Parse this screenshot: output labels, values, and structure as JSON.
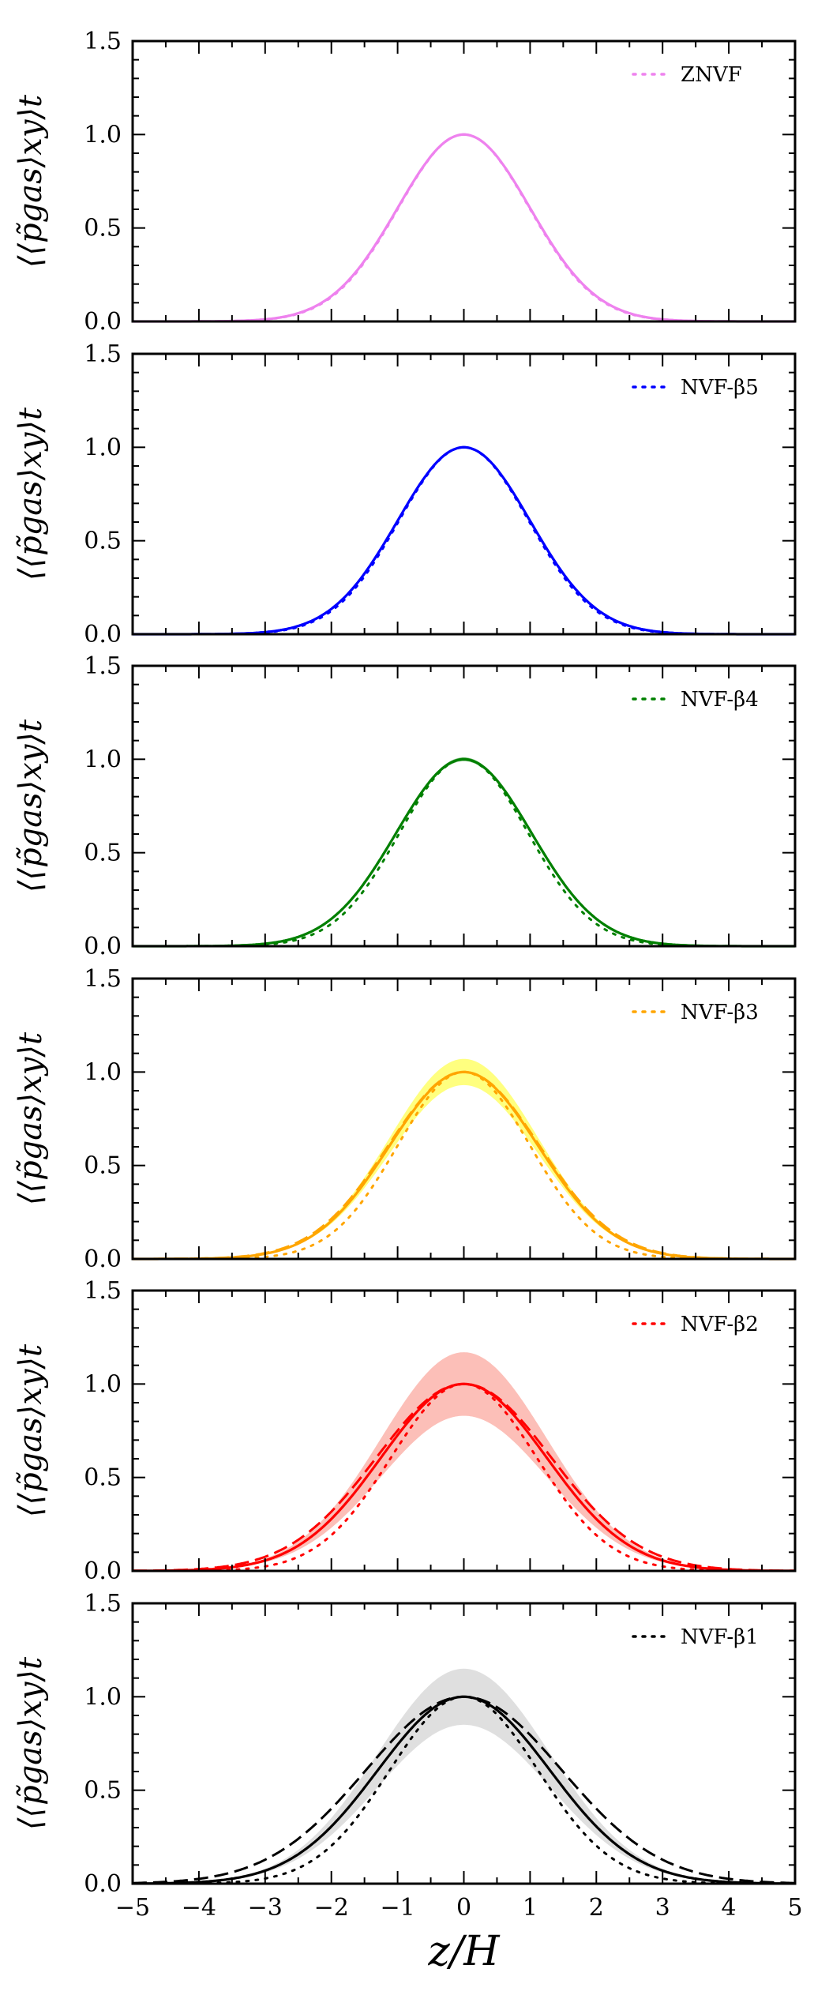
{
  "chart_data": [
    {
      "type": "line",
      "legend": "ZNVF",
      "color": "#ee82ee",
      "band_color": "#ee82ee",
      "band_halfwidth": 0.0,
      "series": [
        {
          "name": "solid",
          "style": "solid",
          "sigma": 1.0
        },
        {
          "name": "dashed",
          "style": "dashed",
          "sigma": 1.0
        },
        {
          "name": "dotted",
          "style": "dotted",
          "sigma": 0.99
        }
      ],
      "ylabel": "⟨⟨p̃gas⟩xy⟩t",
      "xlim": [
        -5,
        5
      ],
      "ylim": [
        0,
        1.5
      ],
      "yticks": [
        "0.0",
        "0.5",
        "1.0",
        "1.5"
      ]
    },
    {
      "type": "line",
      "legend": "NVF-β5",
      "color": "#0000ff",
      "band_color": "#0000ff",
      "band_halfwidth": 0.0,
      "series": [
        {
          "name": "solid",
          "style": "solid",
          "sigma": 1.0
        },
        {
          "name": "dashed",
          "style": "dashed",
          "sigma": 1.0
        },
        {
          "name": "dotted",
          "style": "dotted",
          "sigma": 0.98
        }
      ],
      "ylabel": "⟨⟨p̃gas⟩xy⟩t",
      "xlim": [
        -5,
        5
      ],
      "ylim": [
        0,
        1.5
      ],
      "yticks": [
        "0.0",
        "0.5",
        "1.0",
        "1.5"
      ]
    },
    {
      "type": "line",
      "legend": "NVF-β4",
      "color": "#008000",
      "band_color": "#008000",
      "band_halfwidth": 0.01,
      "series": [
        {
          "name": "solid",
          "style": "solid",
          "sigma": 1.02
        },
        {
          "name": "dashed",
          "style": "dashed",
          "sigma": 1.02
        },
        {
          "name": "dotted",
          "style": "dotted",
          "sigma": 0.97
        }
      ],
      "ylabel": "⟨⟨p̃gas⟩xy⟩t",
      "xlim": [
        -5,
        5
      ],
      "ylim": [
        0,
        1.5
      ],
      "yticks": [
        "0.0",
        "0.5",
        "1.0",
        "1.5"
      ]
    },
    {
      "type": "line",
      "legend": "NVF-β3",
      "color": "#ffa500",
      "band_color": "#ffff00",
      "band_halfwidth": 0.07,
      "series": [
        {
          "name": "solid",
          "style": "solid",
          "sigma": 1.12
        },
        {
          "name": "dashed",
          "style": "dashed",
          "sigma": 1.14
        },
        {
          "name": "dotted",
          "style": "dotted",
          "sigma": 1.0
        }
      ],
      "ylabel": "⟨⟨p̃gas⟩xy⟩t",
      "xlim": [
        -5,
        5
      ],
      "ylim": [
        0,
        1.5
      ],
      "yticks": [
        "0.0",
        "0.5",
        "1.0",
        "1.5"
      ]
    },
    {
      "type": "line",
      "legend": "NVF-β2",
      "color": "#ff0000",
      "band_color": "#fa8072",
      "band_halfwidth": 0.17,
      "series": [
        {
          "name": "solid",
          "style": "solid",
          "sigma": 1.25
        },
        {
          "name": "dashed",
          "style": "dashed",
          "sigma": 1.32
        },
        {
          "name": "dotted",
          "style": "dotted",
          "sigma": 1.1
        }
      ],
      "ylabel": "⟨⟨p̃gas⟩xy⟩t",
      "xlim": [
        -5,
        5
      ],
      "ylim": [
        0,
        1.5
      ],
      "yticks": [
        "0.0",
        "0.5",
        "1.0",
        "1.5"
      ]
    },
    {
      "type": "line",
      "legend": "NVF-β1",
      "color": "#000000",
      "band_color": "#c0c0c0",
      "band_halfwidth": 0.15,
      "series": [
        {
          "name": "solid",
          "style": "solid",
          "sigma": 1.3
        },
        {
          "name": "dashed",
          "style": "dashed",
          "sigma": 1.48
        },
        {
          "name": "dotted",
          "style": "dotted",
          "sigma": 1.12
        }
      ],
      "ylabel": "⟨⟨p̃gas⟩xy⟩t",
      "xlim": [
        -5,
        5
      ],
      "ylim": [
        0,
        1.5
      ],
      "yticks": [
        "0.0",
        "0.5",
        "1.0",
        "1.5"
      ]
    }
  ],
  "x_axis": {
    "label": "z/H",
    "ticks": [
      "−5",
      "−4",
      "−3",
      "−2",
      "−1",
      "0",
      "1",
      "2",
      "3",
      "4",
      "5"
    ]
  }
}
